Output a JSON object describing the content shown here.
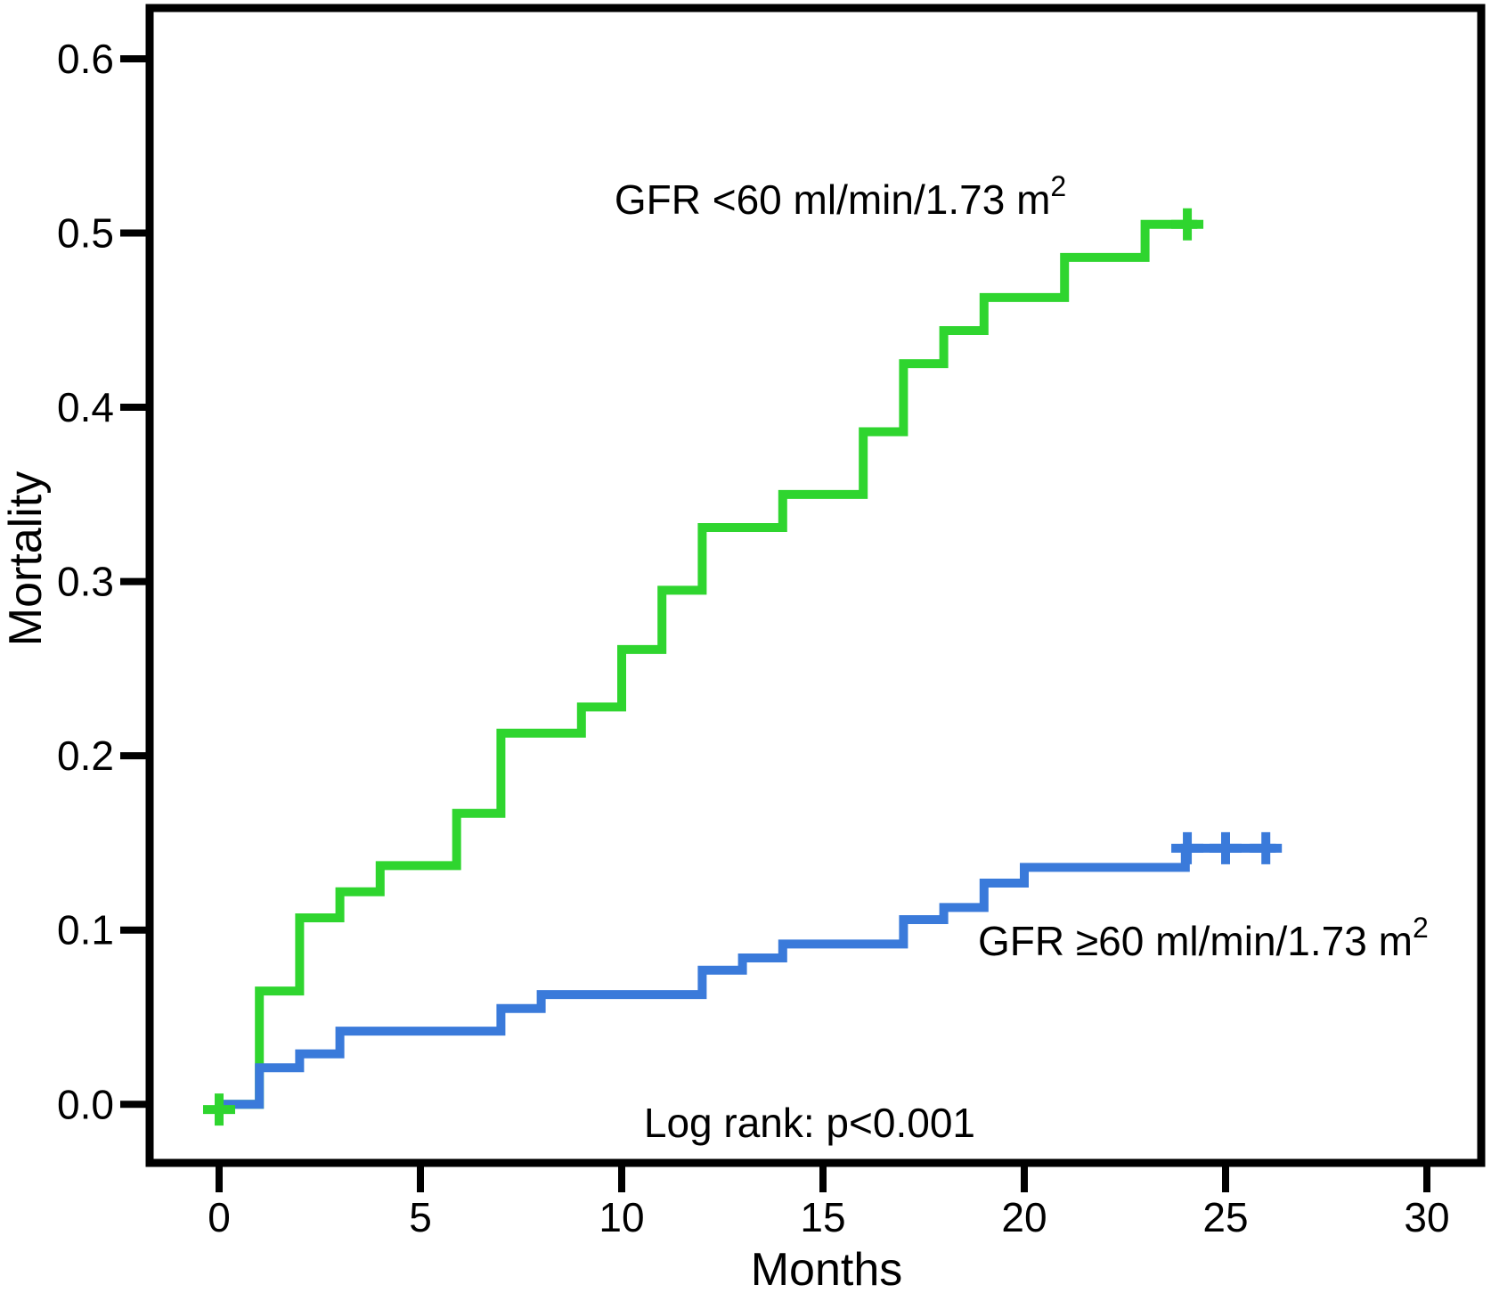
{
  "figure": {
    "background": "#ffffff",
    "axis_color": "#000000",
    "text_color": "#000000"
  },
  "chart_data": {
    "type": "line",
    "subtype": "kaplan-meier-step",
    "title": "",
    "xlabel": "Months",
    "ylabel": "Mortality",
    "xlim": [
      0,
      30
    ],
    "ylim": [
      0.0,
      0.6
    ],
    "x_ticks": [
      "0",
      "5",
      "10",
      "15",
      "20",
      "25",
      "30"
    ],
    "y_ticks": [
      "0.0",
      "0.1",
      "0.2",
      "0.3",
      "0.4",
      "0.5",
      "0.6"
    ],
    "grid": false,
    "legend_position": "inline-curve-labels",
    "annotations": [
      {
        "id": "log-rank",
        "text": "Log rank: p<0.001",
        "x": 10.55,
        "y": -0.0188
      }
    ],
    "series": [
      {
        "id": "gfr-lt-60",
        "name": "GFR <60 ml/min/1.73 m2",
        "label_text": "GFR <60 ml/min/1.73 m",
        "label_sup": "2",
        "label_x": 9.82,
        "label_y": 0.511,
        "color": "#2fd52f",
        "steps": [
          [
            0,
            0.0
          ],
          [
            1,
            0.065
          ],
          [
            2,
            0.107
          ],
          [
            3,
            0.122
          ],
          [
            4,
            0.137
          ],
          [
            5.9,
            0.167
          ],
          [
            7,
            0.213
          ],
          [
            9,
            0.228
          ],
          [
            10,
            0.261
          ],
          [
            11,
            0.295
          ],
          [
            12,
            0.331
          ],
          [
            14,
            0.35
          ],
          [
            16,
            0.386
          ],
          [
            17,
            0.425
          ],
          [
            18,
            0.444
          ],
          [
            19,
            0.463
          ],
          [
            21,
            0.486
          ],
          [
            23,
            0.505
          ]
        ],
        "end_x": 24.3,
        "censor_marks": [
          [
            0,
            -0.003
          ],
          [
            24.05,
            0.505
          ]
        ]
      },
      {
        "id": "gfr-ge-60",
        "name": "GFR ≥60 ml/min/1.73 m2",
        "label_text": "GFR ≥60 ml/min/1.73 m",
        "label_sup": "2",
        "label_x": 18.85,
        "label_y": 0.0856,
        "color": "#3a7ada",
        "steps": [
          [
            0,
            0.0
          ],
          [
            1,
            0.021
          ],
          [
            2,
            0.029
          ],
          [
            3,
            0.042
          ],
          [
            7,
            0.055
          ],
          [
            8,
            0.063
          ],
          [
            12,
            0.077
          ],
          [
            13,
            0.084
          ],
          [
            14,
            0.092
          ],
          [
            17,
            0.106
          ],
          [
            18,
            0.113
          ],
          [
            19,
            0.127
          ],
          [
            20,
            0.136
          ],
          [
            24,
            0.147
          ]
        ],
        "end_x": 26.25,
        "censor_marks": [
          [
            24.05,
            0.147
          ],
          [
            25,
            0.147
          ],
          [
            26,
            0.147
          ]
        ]
      }
    ]
  }
}
